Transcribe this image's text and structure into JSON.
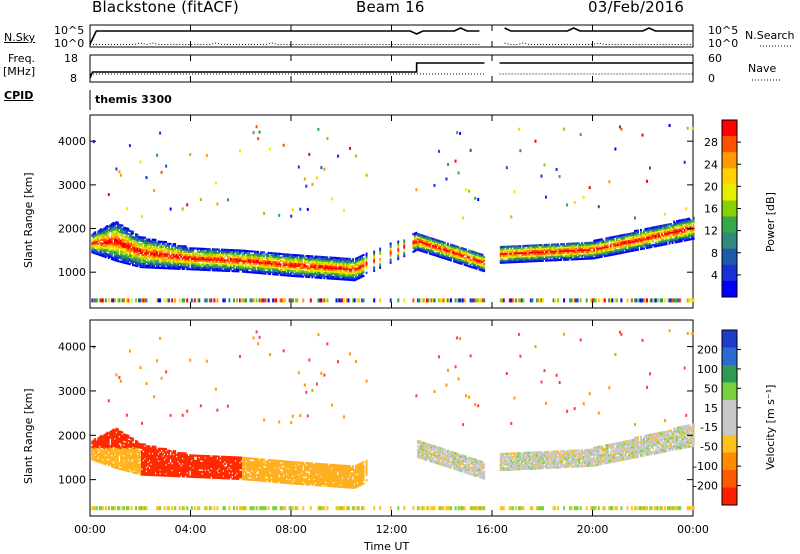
{
  "header": {
    "station": "Blackstone (fitACF)",
    "beam": "Beam 16",
    "date": "03/Feb/2016"
  },
  "panels": {
    "nsky": {
      "label": "N.Sky",
      "ticks": [
        "10^5",
        "10^0"
      ],
      "right_label": "N.Search",
      "right_ticks": [
        "10^5",
        "10^0"
      ]
    },
    "freq": {
      "label": "Freq.",
      "unit": "[MHz]",
      "ticks": [
        "18",
        "8"
      ],
      "right_label": "Nave",
      "right_ticks": [
        "60",
        "0"
      ]
    },
    "cpid": {
      "label": "CPID",
      "value": "themis 3300"
    }
  },
  "colorbars": {
    "power": {
      "label": "Power [dB]",
      "ticks": [
        "28",
        "24",
        "20",
        "16",
        "12",
        "8",
        "4"
      ],
      "colors": [
        "#ff0000",
        "#ff5000",
        "#ff9a00",
        "#ffd200",
        "#e6ef00",
        "#88d000",
        "#36a84a",
        "#2e8a7c",
        "#1c5aa8",
        "#1830d8",
        "#0000ff"
      ]
    },
    "velocity": {
      "label": "Velocity [m s⁻¹]",
      "ticks": [
        "200",
        "100",
        "50",
        "15",
        "-15",
        "-50",
        "-100",
        "-200"
      ],
      "colors": [
        "#1e3cc8",
        "#2b6bd0",
        "#2f9a52",
        "#7bd23e",
        "#c8c8c8",
        "#c8c8c8",
        "#ffc11e",
        "#ff8c00",
        "#ff5a00",
        "#ff2000"
      ]
    }
  },
  "axes": {
    "ylabel": "Slant Range [km]",
    "yticks": [
      "4000",
      "3000",
      "2000",
      "1000"
    ],
    "xlabel": "Time UT",
    "xticks": [
      "00:00",
      "04:00",
      "08:00",
      "12:00",
      "16:00",
      "20:00",
      "00:00"
    ]
  },
  "chart_data": {
    "type": "heatmap",
    "xlabel": "Time UT",
    "ylabel": "Slant Range [km]",
    "xlim_hours": [
      0,
      24
    ],
    "ylim_km": [
      180,
      4600
    ],
    "data_gap_hours": [
      15.7,
      16.3
    ],
    "power_band": [
      {
        "t": 0.0,
        "center": 1650,
        "width": 400
      },
      {
        "t": 1.0,
        "center": 1700,
        "width": 900
      },
      {
        "t": 2.0,
        "center": 1450,
        "width": 700
      },
      {
        "t": 4.0,
        "center": 1300,
        "width": 500
      },
      {
        "t": 6.0,
        "center": 1250,
        "width": 500
      },
      {
        "t": 8.0,
        "center": 1150,
        "width": 500
      },
      {
        "t": 10.5,
        "center": 1050,
        "width": 500
      },
      {
        "t": 13.0,
        "center": 1700,
        "width": 400
      },
      {
        "t": 15.7,
        "center": 1200,
        "width": 400
      },
      {
        "t": 16.3,
        "center": 1400,
        "width": 400
      },
      {
        "t": 20.0,
        "center": 1500,
        "width": 400
      },
      {
        "t": 24.0,
        "center": 2000,
        "width": 500
      }
    ],
    "velocity_regions": [
      {
        "t0": 0,
        "t1": 2,
        "value": -50
      },
      {
        "t0": 2,
        "t1": 6,
        "value": -200
      },
      {
        "t0": 6,
        "t1": 11,
        "value": -60
      },
      {
        "t0": 13,
        "t1": 24,
        "value": 0
      }
    ]
  }
}
